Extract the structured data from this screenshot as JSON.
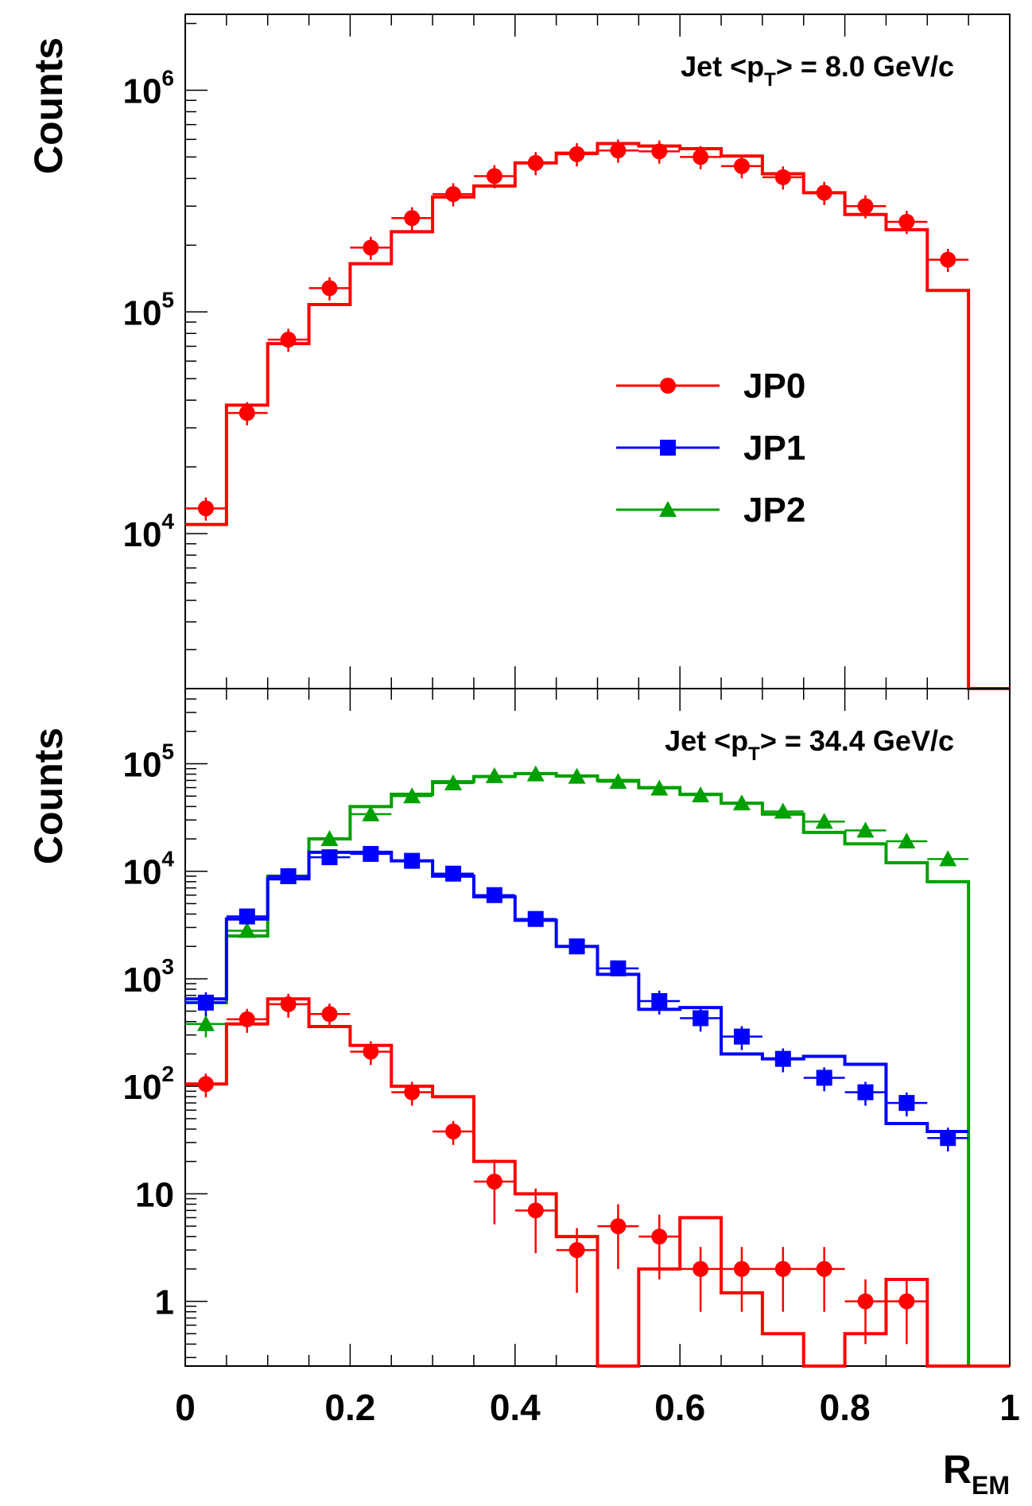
{
  "chart_data": [
    {
      "type": "line",
      "panel": "top",
      "ylabel": "Counts",
      "xlabel": "",
      "xlim": [
        0,
        1
      ],
      "ylim": [
        2000,
        2200000
      ],
      "yscale": "log",
      "annotation": "Jet <pT> = 8.0 GeV/c",
      "annotation_parts": [
        "Jet <p",
        "T",
        "> = 8.0 GeV/c"
      ],
      "y_tick_labels": [
        {
          "value": 1000000,
          "base": "10",
          "exp": "6"
        },
        {
          "value": 100000,
          "base": "10",
          "exp": "5"
        },
        {
          "value": 10000,
          "base": "10",
          "exp": "4"
        }
      ],
      "legend": {
        "placement": "center-right",
        "entries": [
          {
            "label": "JP0",
            "color": "#ff0000",
            "marker": "circle"
          },
          {
            "label": "JP1",
            "color": "#0000ff",
            "marker": "square"
          },
          {
            "label": "JP2",
            "color": "#00a000",
            "marker": "triangle"
          }
        ]
      },
      "series": [
        {
          "name": "JP0",
          "color": "#ff0000",
          "marker": "circle",
          "points": [
            [
              0.025,
              13000
            ],
            [
              0.075,
              35000
            ],
            [
              0.125,
              75000
            ],
            [
              0.175,
              128000
            ],
            [
              0.225,
              195000
            ],
            [
              0.275,
              265000
            ],
            [
              0.325,
              340000
            ],
            [
              0.375,
              410000
            ],
            [
              0.425,
              470000
            ],
            [
              0.475,
              515000
            ],
            [
              0.525,
              535000
            ],
            [
              0.575,
              530000
            ],
            [
              0.625,
              500000
            ],
            [
              0.675,
              455000
            ],
            [
              0.725,
              405000
            ],
            [
              0.775,
              345000
            ],
            [
              0.825,
              300000
            ],
            [
              0.875,
              255000
            ],
            [
              0.925,
              172000
            ]
          ],
          "hist": [
            11000,
            38000,
            72000,
            108000,
            165000,
            230000,
            330000,
            370000,
            470000,
            520000,
            575000,
            560000,
            545000,
            505000,
            420000,
            345000,
            275000,
            235000,
            125000,
            1
          ]
        }
      ]
    },
    {
      "type": "line",
      "panel": "bottom",
      "ylabel": "Counts",
      "xlabel": "R_EM",
      "xlabel_parts": [
        "R",
        "EM"
      ],
      "xlim": [
        0,
        1
      ],
      "ylim": [
        0.25,
        500000
      ],
      "yscale": "log",
      "annotation": "Jet <pT> = 34.4 GeV/c",
      "annotation_parts": [
        "Jet <p",
        "T",
        "> = 34.4 GeV/c"
      ],
      "x_tick_labels": [
        "0",
        "0.2",
        "0.4",
        "0.6",
        "0.8",
        "1"
      ],
      "y_tick_labels": [
        {
          "value": 100000,
          "base": "10",
          "exp": "5"
        },
        {
          "value": 10000,
          "base": "10",
          "exp": "4"
        },
        {
          "value": 1000,
          "base": "10",
          "exp": "3"
        },
        {
          "value": 100,
          "base": "10",
          "exp": "2"
        },
        {
          "value": 10,
          "base": "10",
          "exp": ""
        },
        {
          "value": 1,
          "base": "1",
          "exp": ""
        }
      ],
      "series": [
        {
          "name": "JP2",
          "color": "#00a000",
          "marker": "triangle",
          "points": [
            [
              0.025,
              380
            ],
            [
              0.075,
              2800
            ],
            [
              0.125,
              9000
            ],
            [
              0.175,
              20000
            ],
            [
              0.225,
              34000
            ],
            [
              0.275,
              50000
            ],
            [
              0.325,
              66000
            ],
            [
              0.375,
              77000
            ],
            [
              0.425,
              80000
            ],
            [
              0.475,
              76000
            ],
            [
              0.525,
              68000
            ],
            [
              0.575,
              59000
            ],
            [
              0.625,
              51000
            ],
            [
              0.675,
              43000
            ],
            [
              0.725,
              36000
            ],
            [
              0.775,
              29000
            ],
            [
              0.825,
              24000
            ],
            [
              0.875,
              19000
            ],
            [
              0.925,
              13000
            ]
          ],
          "hist": [
            600,
            2500,
            9000,
            20000,
            40000,
            52000,
            68000,
            76000,
            81000,
            77000,
            70000,
            60000,
            52000,
            43000,
            34000,
            23000,
            18000,
            12000,
            8000,
            0.25
          ]
        },
        {
          "name": "JP1",
          "color": "#0000ff",
          "marker": "square",
          "points": [
            [
              0.025,
              600
            ],
            [
              0.075,
              3800
            ],
            [
              0.125,
              9000
            ],
            [
              0.175,
              13500
            ],
            [
              0.225,
              14500
            ],
            [
              0.275,
              12500
            ],
            [
              0.325,
              9500
            ],
            [
              0.375,
              6000
            ],
            [
              0.425,
              3600
            ],
            [
              0.475,
              2000
            ],
            [
              0.525,
              1250
            ],
            [
              0.575,
              620
            ],
            [
              0.625,
              430
            ],
            [
              0.675,
              290
            ],
            [
              0.725,
              180
            ],
            [
              0.775,
              120
            ],
            [
              0.825,
              88
            ],
            [
              0.875,
              70
            ],
            [
              0.925,
              33
            ]
          ],
          "hist": [
            650,
            3600,
            8500,
            15000,
            15000,
            12500,
            9000,
            5800,
            3500,
            2000,
            1100,
            520,
            540,
            200,
            180,
            190,
            160,
            45,
            38
          ]
        },
        {
          "name": "JP0",
          "color": "#ff0000",
          "marker": "circle",
          "points": [
            [
              0.025,
              105
            ],
            [
              0.075,
              420
            ],
            [
              0.125,
              580
            ],
            [
              0.175,
              470
            ],
            [
              0.225,
              210
            ],
            [
              0.275,
              88
            ],
            [
              0.325,
              38
            ],
            [
              0.375,
              13
            ],
            [
              0.425,
              7
            ],
            [
              0.475,
              3
            ],
            [
              0.525,
              5
            ],
            [
              0.575,
              4
            ],
            [
              0.625,
              2
            ],
            [
              0.675,
              2
            ],
            [
              0.725,
              2
            ],
            [
              0.775,
              2
            ],
            [
              0.825,
              1
            ],
            [
              0.875,
              1
            ]
          ],
          "hist": [
            105,
            380,
            650,
            360,
            240,
            100,
            80,
            20,
            10,
            4,
            0.25,
            2,
            6,
            1.2,
            0.5,
            0.25,
            0.5,
            1.6,
            0.25,
            0.25
          ]
        }
      ]
    }
  ]
}
